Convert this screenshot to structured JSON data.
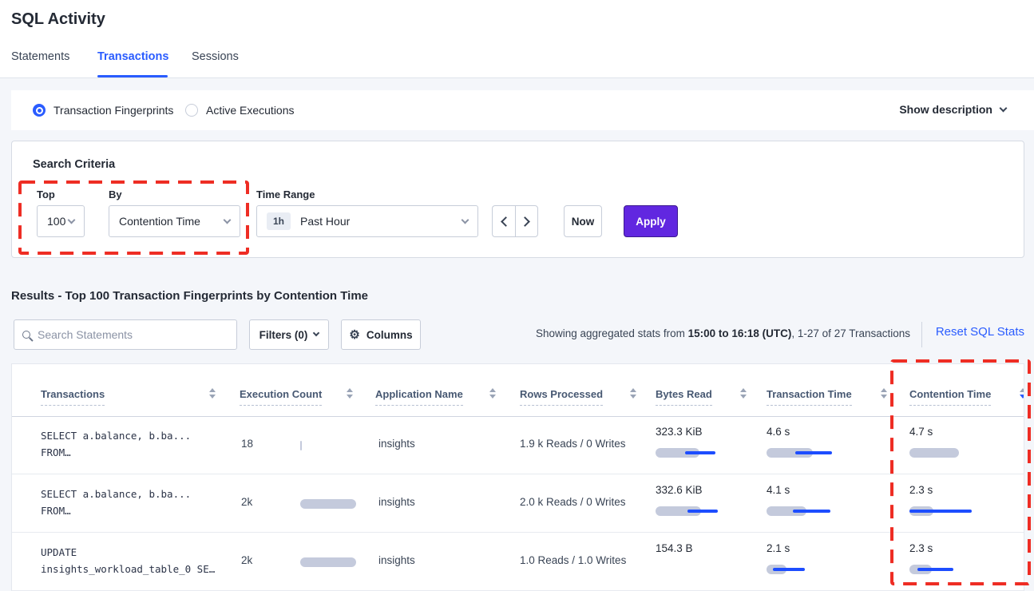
{
  "page": {
    "title": "SQL Activity"
  },
  "tabs": [
    {
      "label": "Statements"
    },
    {
      "label": "Transactions"
    },
    {
      "label": "Sessions"
    }
  ],
  "view_toggle": {
    "fingerprints_label": "Transaction Fingerprints",
    "active_executions_label": "Active Executions",
    "show_description_label": "Show description"
  },
  "search_criteria": {
    "heading": "Search Criteria",
    "top": {
      "label": "Top",
      "value": "100"
    },
    "by": {
      "label": "By",
      "value": "Contention Time"
    },
    "time_range": {
      "label": "Time Range",
      "badge": "1h",
      "value": "Past Hour"
    },
    "now_label": "Now",
    "apply_label": "Apply"
  },
  "results": {
    "heading": "Results - Top 100 Transaction Fingerprints by Contention Time",
    "search_placeholder": "Search Statements",
    "filters_label": "Filters (0)",
    "columns_label": "Columns",
    "stats_prefix": "Showing aggregated stats from ",
    "stats_bold": "15:00 to 16:18 (UTC)",
    "stats_suffix": ", 1-27 of 27 Transactions",
    "reset_label": "Reset SQL Stats"
  },
  "table": {
    "columns": [
      "Transactions",
      "Execution Count",
      "Application Name",
      "Rows Processed",
      "Bytes Read",
      "Transaction Time",
      "Contention Time"
    ],
    "sorted_by": "Contention Time",
    "sort_direction": "desc",
    "rows": [
      {
        "transaction_line1": "SELECT a.balance, b.ba...",
        "transaction_line2": "FROM…",
        "execution_count": {
          "text": "18",
          "bar": 2
        },
        "application_name": "insights",
        "rows_processed": "1.9 k Reads / 0 Writes",
        "bytes_read": {
          "text": "323.3 KiB",
          "bar": 55,
          "line": [
            37,
            75
          ]
        },
        "transaction_time": {
          "text": "4.6 s",
          "bar": 58,
          "line": [
            36,
            82
          ]
        },
        "contention_time": {
          "text": "4.7 s",
          "bar": 62,
          "line": null
        }
      },
      {
        "transaction_line1": "SELECT a.balance, b.ba...",
        "transaction_line2": "FROM…",
        "execution_count": {
          "text": "2k",
          "bar": 70
        },
        "application_name": "insights",
        "rows_processed": "2.0 k Reads / 0 Writes",
        "bytes_read": {
          "text": "332.6 KiB",
          "bar": 57,
          "line": [
            40,
            78
          ]
        },
        "transaction_time": {
          "text": "4.1 s",
          "bar": 50,
          "line": [
            33,
            80
          ]
        },
        "contention_time": {
          "text": "2.3 s",
          "bar": 30,
          "line": [
            0,
            78
          ]
        }
      },
      {
        "transaction_line1": "UPDATE",
        "transaction_line2": "insights_workload_table_0 SE…",
        "execution_count": {
          "text": "2k",
          "bar": 70
        },
        "application_name": "insights",
        "rows_processed": "1.0 Reads / 1.0 Writes",
        "bytes_read": {
          "text": "154.3 B",
          "bar": 0,
          "line": null
        },
        "transaction_time": {
          "text": "2.1 s",
          "bar": 25,
          "line": [
            8,
            48
          ]
        },
        "contention_time": {
          "text": "2.3 s",
          "bar": 28,
          "line": [
            10,
            55
          ]
        }
      }
    ]
  },
  "icons": {
    "gear": "⚙"
  },
  "colors": {
    "accent_blue": "#2a5cff",
    "apply_purple": "#6127e0",
    "annotation_red": "#ee2d24",
    "bar_gray": "#c4cadc",
    "bar_line_blue": "#1d4dff"
  }
}
